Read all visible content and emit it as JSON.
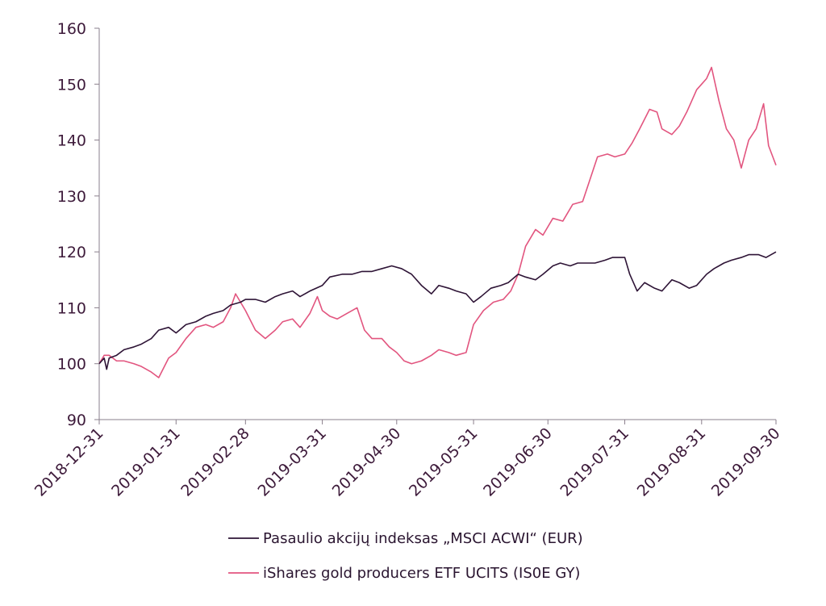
{
  "chart_data": {
    "type": "line",
    "title": "",
    "xlabel": "",
    "ylabel": "",
    "x_ticks": [
      "2018-12-31",
      "2019-01-31",
      "2019-02-28",
      "2019-03-31",
      "2019-04-30",
      "2019-05-31",
      "2019-06-30",
      "2019-07-31",
      "2019-08-31",
      "2019-09-30"
    ],
    "xlim": [
      "2018-12-31",
      "2019-09-30"
    ],
    "ylim": [
      90,
      160
    ],
    "y_ticks": [
      90,
      100,
      110,
      120,
      130,
      140,
      150,
      160
    ],
    "grid": false,
    "legend_position": "bottom",
    "series": [
      {
        "name": "Pasaulio akcijų indeksas „MSCI ACWI“ (EUR)",
        "color": "#2e1436",
        "points": [
          [
            "2018-12-31",
            100
          ],
          [
            "2019-01-02",
            101
          ],
          [
            "2019-01-03",
            99
          ],
          [
            "2019-01-04",
            101
          ],
          [
            "2019-01-07",
            101.5
          ],
          [
            "2019-01-10",
            102.5
          ],
          [
            "2019-01-14",
            103
          ],
          [
            "2019-01-17",
            103.5
          ],
          [
            "2019-01-21",
            104.5
          ],
          [
            "2019-01-24",
            106
          ],
          [
            "2019-01-28",
            106.5
          ],
          [
            "2019-01-31",
            105.5
          ],
          [
            "2019-02-04",
            107
          ],
          [
            "2019-02-08",
            107.5
          ],
          [
            "2019-02-12",
            108.5
          ],
          [
            "2019-02-15",
            109
          ],
          [
            "2019-02-19",
            109.5
          ],
          [
            "2019-02-22",
            110.5
          ],
          [
            "2019-02-26",
            111
          ],
          [
            "2019-02-28",
            111.5
          ],
          [
            "2019-03-04",
            111.5
          ],
          [
            "2019-03-08",
            111
          ],
          [
            "2019-03-12",
            112
          ],
          [
            "2019-03-15",
            112.5
          ],
          [
            "2019-03-19",
            113
          ],
          [
            "2019-03-22",
            112
          ],
          [
            "2019-03-26",
            113
          ],
          [
            "2019-03-31",
            114
          ],
          [
            "2019-04-03",
            115.5
          ],
          [
            "2019-04-08",
            116
          ],
          [
            "2019-04-12",
            116
          ],
          [
            "2019-04-16",
            116.5
          ],
          [
            "2019-04-20",
            116.5
          ],
          [
            "2019-04-24",
            117
          ],
          [
            "2019-04-28",
            117.5
          ],
          [
            "2019-05-02",
            117
          ],
          [
            "2019-05-06",
            116
          ],
          [
            "2019-05-10",
            114
          ],
          [
            "2019-05-14",
            112.5
          ],
          [
            "2019-05-17",
            114
          ],
          [
            "2019-05-21",
            113.5
          ],
          [
            "2019-05-24",
            113
          ],
          [
            "2019-05-28",
            112.5
          ],
          [
            "2019-05-31",
            111
          ],
          [
            "2019-06-03",
            112
          ],
          [
            "2019-06-07",
            113.5
          ],
          [
            "2019-06-11",
            114
          ],
          [
            "2019-06-14",
            114.5
          ],
          [
            "2019-06-18",
            116
          ],
          [
            "2019-06-21",
            115.5
          ],
          [
            "2019-06-25",
            115
          ],
          [
            "2019-06-28",
            116
          ],
          [
            "2019-07-02",
            117.5
          ],
          [
            "2019-07-05",
            118
          ],
          [
            "2019-07-09",
            117.5
          ],
          [
            "2019-07-12",
            118
          ],
          [
            "2019-07-16",
            118
          ],
          [
            "2019-07-19",
            118
          ],
          [
            "2019-07-23",
            118.5
          ],
          [
            "2019-07-26",
            119
          ],
          [
            "2019-07-31",
            119
          ],
          [
            "2019-08-02",
            116
          ],
          [
            "2019-08-05",
            113
          ],
          [
            "2019-08-08",
            114.5
          ],
          [
            "2019-08-12",
            113.5
          ],
          [
            "2019-08-15",
            113
          ],
          [
            "2019-08-19",
            115
          ],
          [
            "2019-08-22",
            114.5
          ],
          [
            "2019-08-26",
            113.5
          ],
          [
            "2019-08-29",
            114
          ],
          [
            "2019-09-02",
            116
          ],
          [
            "2019-09-05",
            117
          ],
          [
            "2019-09-09",
            118
          ],
          [
            "2019-09-12",
            118.5
          ],
          [
            "2019-09-16",
            119
          ],
          [
            "2019-09-19",
            119.5
          ],
          [
            "2019-09-23",
            119.5
          ],
          [
            "2019-09-26",
            119
          ],
          [
            "2019-09-30",
            120
          ]
        ]
      },
      {
        "name": "iShares gold producers ETF UCITS (IS0E GY)",
        "color": "#e2557f",
        "points": [
          [
            "2018-12-31",
            100
          ],
          [
            "2019-01-02",
            101.5
          ],
          [
            "2019-01-04",
            101.5
          ],
          [
            "2019-01-07",
            100.5
          ],
          [
            "2019-01-10",
            100.5
          ],
          [
            "2019-01-14",
            100
          ],
          [
            "2019-01-17",
            99.5
          ],
          [
            "2019-01-21",
            98.5
          ],
          [
            "2019-01-24",
            97.5
          ],
          [
            "2019-01-28",
            101
          ],
          [
            "2019-01-31",
            102
          ],
          [
            "2019-02-04",
            104.5
          ],
          [
            "2019-02-08",
            106.5
          ],
          [
            "2019-02-12",
            107
          ],
          [
            "2019-02-15",
            106.5
          ],
          [
            "2019-02-19",
            107.5
          ],
          [
            "2019-02-22",
            110
          ],
          [
            "2019-02-24",
            112.5
          ],
          [
            "2019-02-26",
            111
          ],
          [
            "2019-02-28",
            109.5
          ],
          [
            "2019-03-04",
            106
          ],
          [
            "2019-03-08",
            104.5
          ],
          [
            "2019-03-12",
            106
          ],
          [
            "2019-03-15",
            107.5
          ],
          [
            "2019-03-19",
            108
          ],
          [
            "2019-03-22",
            106.5
          ],
          [
            "2019-03-26",
            109
          ],
          [
            "2019-03-29",
            112
          ],
          [
            "2019-03-31",
            109.5
          ],
          [
            "2019-04-03",
            108.5
          ],
          [
            "2019-04-06",
            108
          ],
          [
            "2019-04-10",
            109
          ],
          [
            "2019-04-14",
            110
          ],
          [
            "2019-04-17",
            106
          ],
          [
            "2019-04-20",
            104.5
          ],
          [
            "2019-04-24",
            104.5
          ],
          [
            "2019-04-27",
            103
          ],
          [
            "2019-04-30",
            102
          ],
          [
            "2019-05-03",
            100.5
          ],
          [
            "2019-05-06",
            100
          ],
          [
            "2019-05-10",
            100.5
          ],
          [
            "2019-05-14",
            101.5
          ],
          [
            "2019-05-17",
            102.5
          ],
          [
            "2019-05-21",
            102
          ],
          [
            "2019-05-24",
            101.5
          ],
          [
            "2019-05-28",
            102
          ],
          [
            "2019-05-31",
            107
          ],
          [
            "2019-06-04",
            109.5
          ],
          [
            "2019-06-08",
            111
          ],
          [
            "2019-06-12",
            111.5
          ],
          [
            "2019-06-15",
            113
          ],
          [
            "2019-06-18",
            116
          ],
          [
            "2019-06-21",
            121
          ],
          [
            "2019-06-25",
            124
          ],
          [
            "2019-06-28",
            123
          ],
          [
            "2019-07-02",
            126
          ],
          [
            "2019-07-06",
            125.5
          ],
          [
            "2019-07-10",
            128.5
          ],
          [
            "2019-07-14",
            129
          ],
          [
            "2019-07-17",
            133
          ],
          [
            "2019-07-20",
            137
          ],
          [
            "2019-07-24",
            137.5
          ],
          [
            "2019-07-27",
            137
          ],
          [
            "2019-07-31",
            137.5
          ],
          [
            "2019-08-03",
            139.5
          ],
          [
            "2019-08-06",
            142
          ],
          [
            "2019-08-10",
            145.5
          ],
          [
            "2019-08-13",
            145
          ],
          [
            "2019-08-15",
            142
          ],
          [
            "2019-08-19",
            141
          ],
          [
            "2019-08-22",
            142.5
          ],
          [
            "2019-08-25",
            145
          ],
          [
            "2019-08-29",
            149
          ],
          [
            "2019-08-31",
            150
          ],
          [
            "2019-09-02",
            151
          ],
          [
            "2019-09-04",
            153
          ],
          [
            "2019-09-07",
            147
          ],
          [
            "2019-09-10",
            142
          ],
          [
            "2019-09-13",
            140
          ],
          [
            "2019-09-16",
            135
          ],
          [
            "2019-09-19",
            140
          ],
          [
            "2019-09-22",
            142
          ],
          [
            "2019-09-25",
            146.5
          ],
          [
            "2019-09-27",
            139
          ],
          [
            "2019-09-30",
            135.5
          ]
        ]
      }
    ]
  }
}
